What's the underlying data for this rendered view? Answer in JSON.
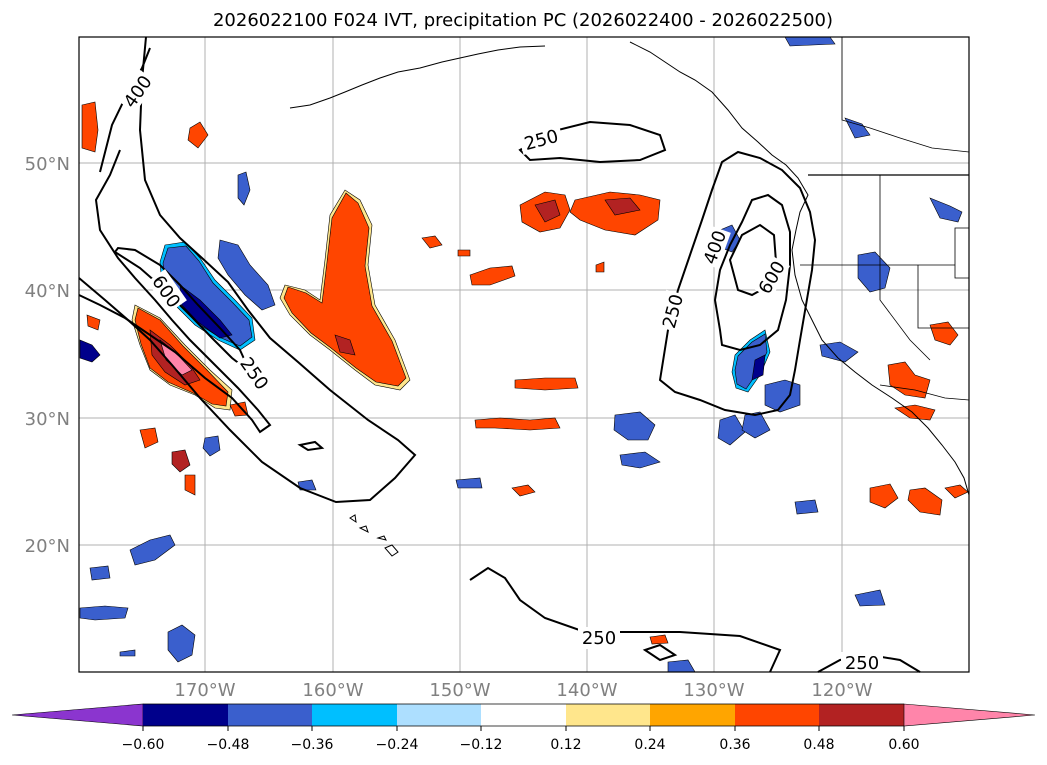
{
  "title": "2026022100 F024 IVT, precipitation PC (2026022400 - 2026022500)",
  "map": {
    "lat_labels": [
      "50°N",
      "40°N",
      "30°N",
      "20°N"
    ],
    "lon_labels": [
      "170°W",
      "160°W",
      "150°W",
      "140°W",
      "130°W",
      "120°W"
    ],
    "ivt_contour_labels": [
      "400",
      "250",
      "600",
      "250",
      "400",
      "250",
      "600",
      "250",
      "250"
    ]
  },
  "colorbar": {
    "ticks": [
      "−0.60",
      "−0.48",
      "−0.36",
      "−0.24",
      "−0.12",
      "0.12",
      "0.24",
      "0.36",
      "0.48",
      "0.60"
    ],
    "colors": [
      "#8B35CF",
      "#00008B",
      "#3A5FCD",
      "#00BFFF",
      "#ADDFFF",
      "#FFFFFF",
      "#FFE68C",
      "#FFA500",
      "#FF4500",
      "#B22222",
      "#FF85AA"
    ]
  }
}
